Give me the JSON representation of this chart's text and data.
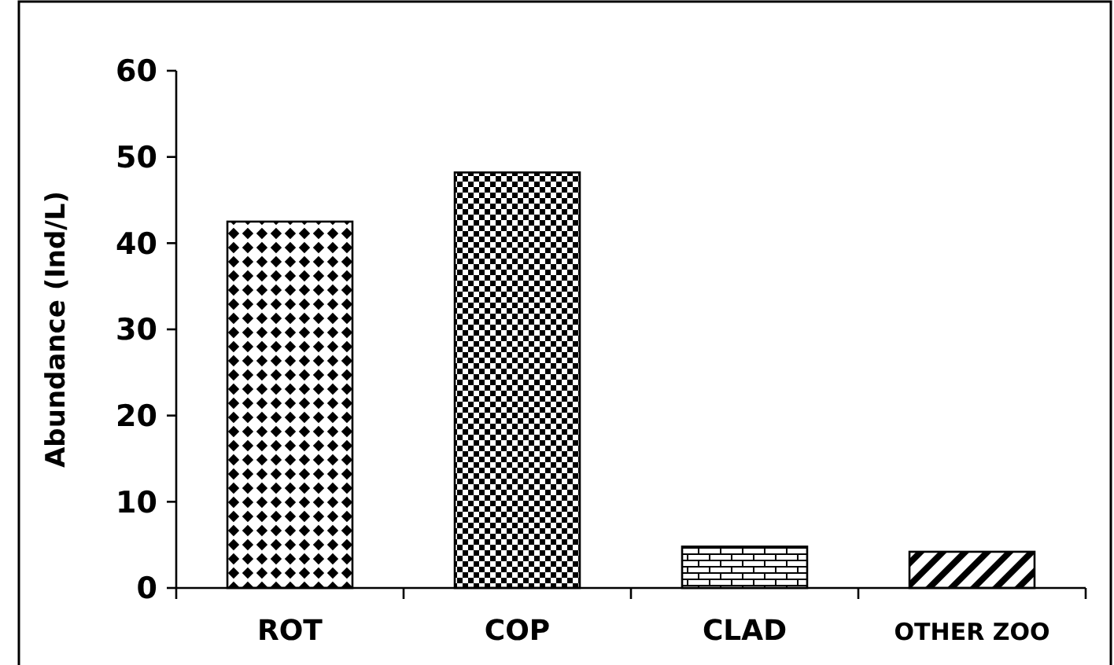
{
  "chart_data": {
    "type": "bar",
    "ylabel": "Abundance (Ind/L)",
    "categories": [
      "ROT",
      "COP",
      "CLAD",
      "OTHER ZOO"
    ],
    "values": [
      42.5,
      48.2,
      4.8,
      4.2
    ],
    "color": "#000000",
    "ylim": [
      0,
      60
    ],
    "yticks": [
      0,
      10,
      20,
      30,
      40,
      50,
      60
    ],
    "grid": false
  }
}
